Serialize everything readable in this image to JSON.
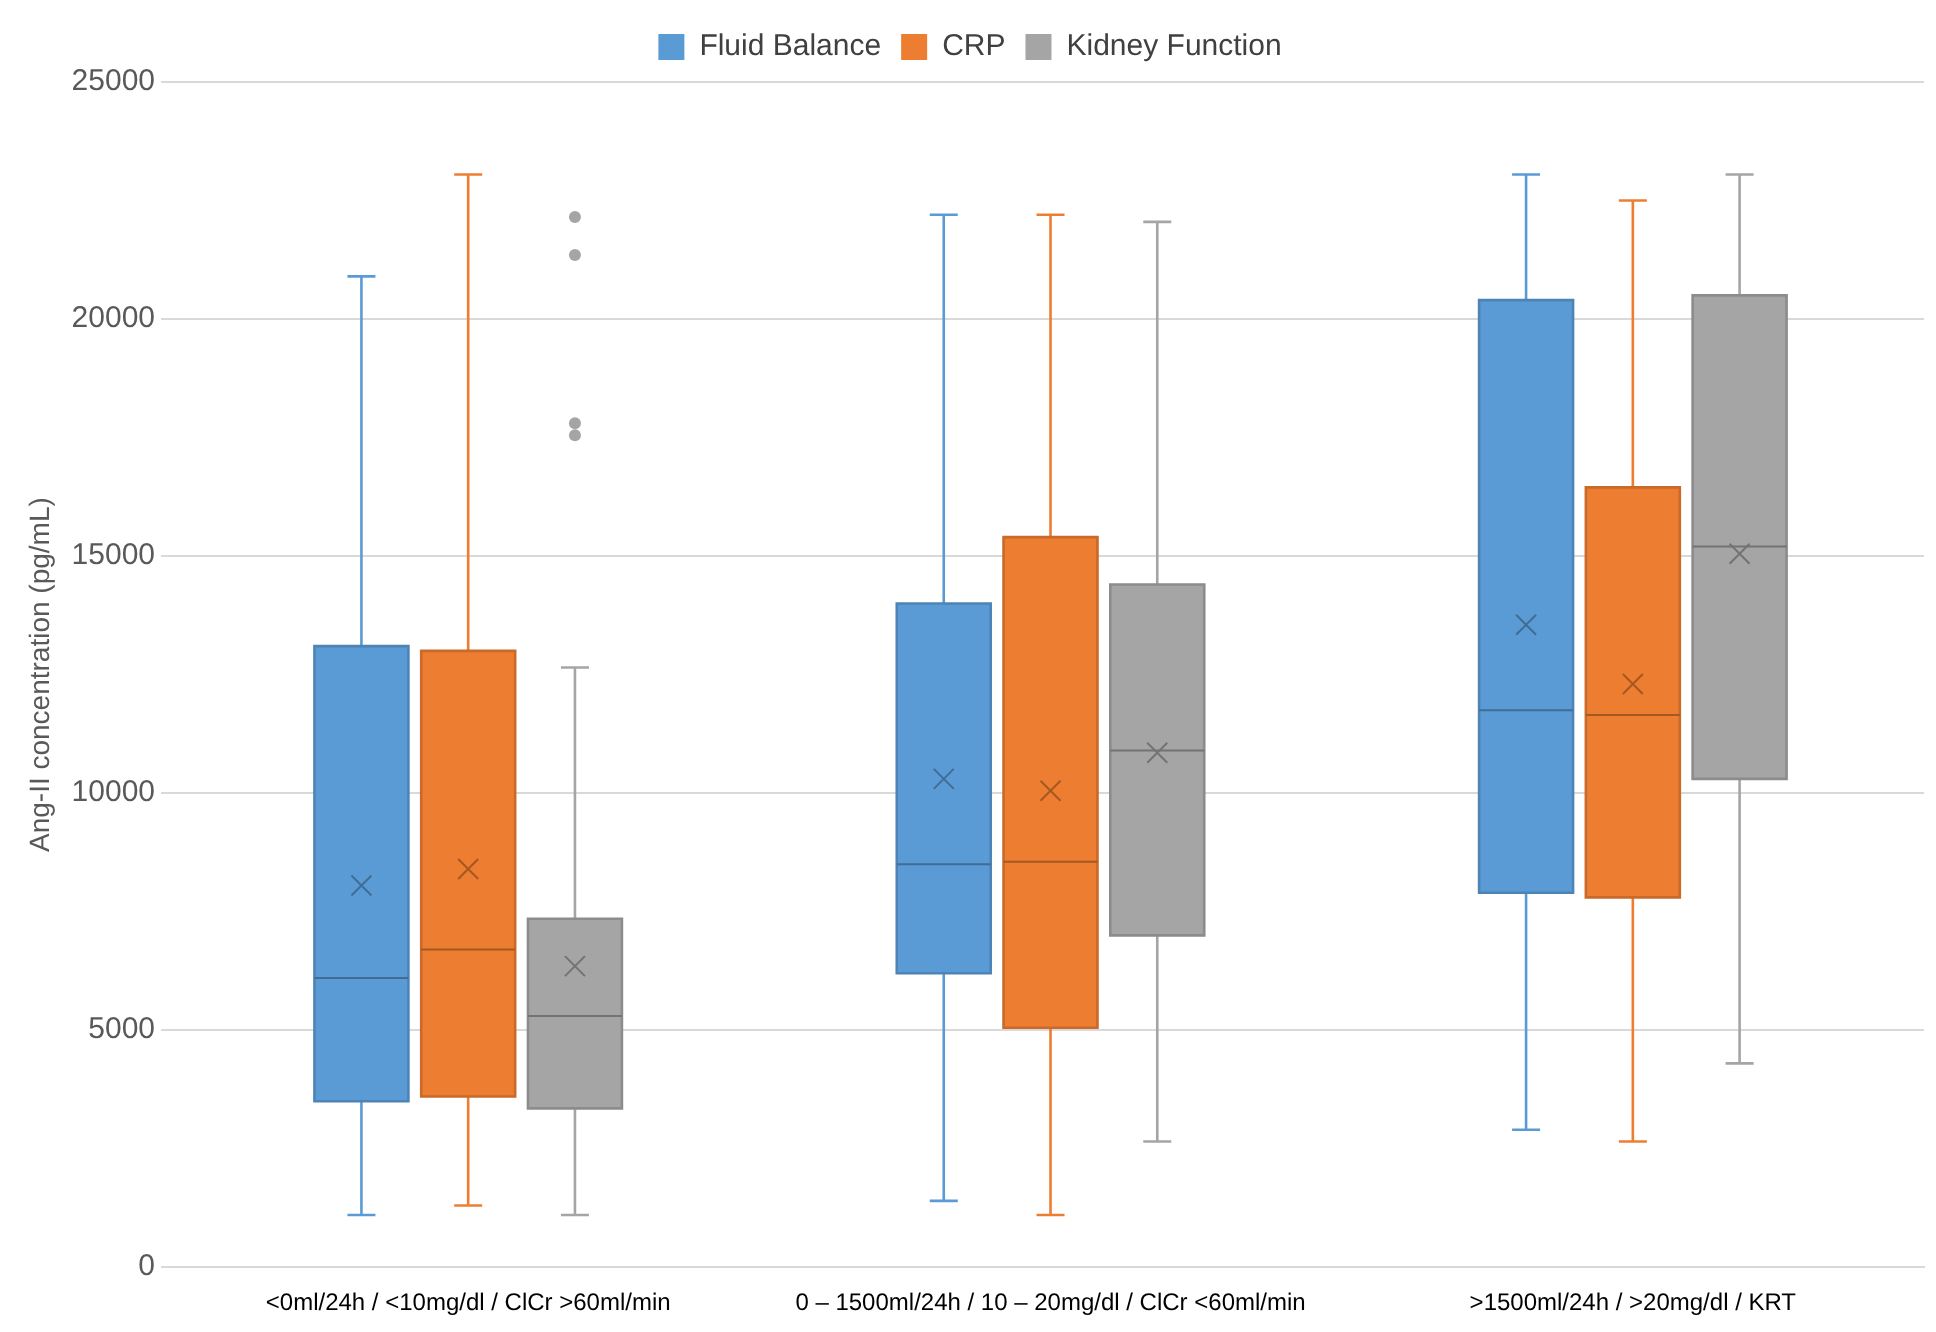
{
  "chart_data": {
    "type": "box",
    "ylabel": "Ang-II concentration (pg/mL)",
    "categories": [
      "<0ml/24h / <10mg/dl / ClCr >60ml/min",
      "0 – 1500ml/24h / 10 – 20mg/dl / ClCr <60ml/min",
      ">1500ml/24h / >20mg/dl / KRT"
    ],
    "ylim": [
      0,
      25000
    ],
    "yticks": [
      0,
      5000,
      10000,
      15000,
      20000,
      25000
    ],
    "grid": "y",
    "legend": "top",
    "marker": "cross",
    "series": [
      {
        "name": "Fluid Balance",
        "color": "#5b9bd5",
        "boxes": [
          {
            "low": 1100,
            "q1": 3500,
            "median": 6100,
            "q3": 13100,
            "high": 20900,
            "mean": 8050
          },
          {
            "low": 1400,
            "q1": 6200,
            "median": 8500,
            "q3": 14000,
            "high": 22200,
            "mean": 10300
          },
          {
            "low": 2900,
            "q1": 7900,
            "median": 11750,
            "q3": 20400,
            "high": 23050,
            "mean": 13550
          }
        ]
      },
      {
        "name": "CRP",
        "color": "#ed7d31",
        "boxes": [
          {
            "low": 1300,
            "q1": 3600,
            "median": 6700,
            "q3": 13000,
            "high": 23050,
            "mean": 8400
          },
          {
            "low": 1100,
            "q1": 5050,
            "median": 8550,
            "q3": 15400,
            "high": 22200,
            "mean": 10050
          },
          {
            "low": 2650,
            "q1": 7800,
            "median": 11650,
            "q3": 16450,
            "high": 22500,
            "mean": 12300
          }
        ]
      },
      {
        "name": "Kidney Function",
        "color": "#a5a5a5",
        "boxes": [
          {
            "low": 1100,
            "q1": 3350,
            "median": 5300,
            "q3": 7350,
            "high": 12650,
            "mean": 6350,
            "outliers": [
              22150,
              21350,
              17800,
              17550
            ]
          },
          {
            "low": 2650,
            "q1": 7000,
            "median": 10900,
            "q3": 14400,
            "high": 22050,
            "mean": 10850
          },
          {
            "low": 4300,
            "q1": 10300,
            "median": 15200,
            "q3": 20500,
            "high": 23050,
            "mean": 15050
          }
        ]
      }
    ]
  }
}
